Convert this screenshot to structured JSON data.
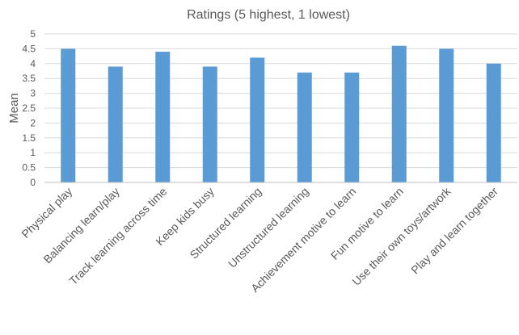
{
  "chart_data": {
    "type": "bar",
    "title": "Ratings (5 highest, 1 lowest)",
    "xlabel": "",
    "ylabel": "Mean",
    "ylim": [
      0,
      5
    ],
    "yticks": [
      "0",
      "0.5",
      "1",
      "1.5",
      "2",
      "2.5",
      "3",
      "3.5",
      "4",
      "4.5",
      "5"
    ],
    "grid": true,
    "bar_color": "#5b9bd5",
    "categories": [
      "Physical play",
      "Balancing learn/play",
      "Track learning across time",
      "Keep kids busy",
      "Structured learning",
      "Unstructured learning",
      "Achievement motive to learn",
      "Fun motive to learn",
      "Use their own toys/artwork",
      "Play and learn together"
    ],
    "values": [
      4.5,
      3.9,
      4.4,
      3.9,
      4.2,
      3.7,
      3.7,
      4.6,
      4.5,
      4.0
    ]
  }
}
